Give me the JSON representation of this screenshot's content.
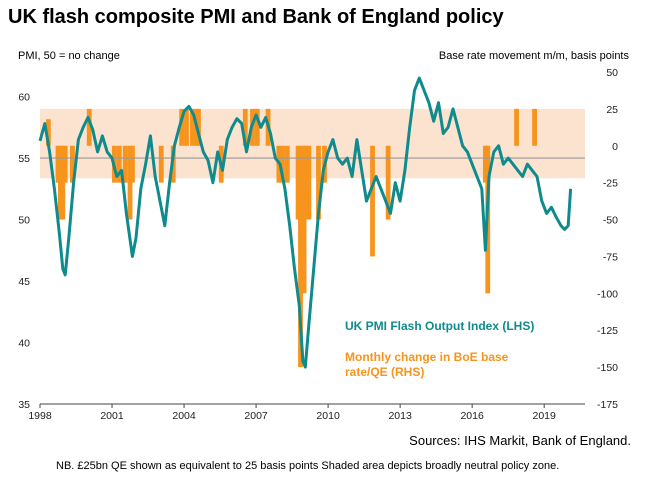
{
  "title": "UK flash composite PMI and Bank of England policy",
  "left_axis_caption": "PMI, 50 = no change",
  "right_axis_caption": "Base rate movement m/m, basis points",
  "source": "Sources: IHS Markit, Bank of England.",
  "note": "NB. £25bn QE shown as equivalent to 25 basis points Shaded area depicts broadly neutral policy zone.",
  "colors": {
    "pmi_line": "#0f8b8d",
    "boe_bars": "#f7941d",
    "neutral_zone": "#fbe3cf",
    "reference_line": "#999999",
    "legend_pmi": "#0f8b8d",
    "legend_boe": "#f7941d"
  },
  "chart_data": {
    "type": "line",
    "x_unit": "year (decimal)",
    "xlim": [
      1998,
      2020.7
    ],
    "x_ticks": [
      1998,
      2001,
      2004,
      2007,
      2010,
      2013,
      2016,
      2019
    ],
    "x_tick_labels": [
      "1998",
      "2001",
      "2004",
      "2007",
      "2010",
      "2013",
      "2016",
      "2019"
    ],
    "y_left": {
      "ylim": [
        35,
        62
      ],
      "ticks": [
        35,
        40,
        45,
        50,
        55,
        60
      ],
      "tick_labels": [
        "35",
        "40",
        "45",
        "50",
        "55",
        "60"
      ]
    },
    "y_right": {
      "ylim": [
        -175,
        50
      ],
      "ticks": [
        -175,
        -150,
        -125,
        -100,
        -75,
        -50,
        -25,
        0,
        25,
        50
      ],
      "tick_labels": [
        "-175",
        "-150",
        "-125",
        "-100",
        "-75",
        "-50",
        "-25",
        "0",
        "25",
        "50"
      ]
    },
    "neutral_zone_rhs": [
      -22,
      25
    ],
    "reference_line_lhs": 55,
    "series": [
      {
        "name": "UK PMI Flash Output Index (LHS)",
        "axis": "left",
        "kind": "line",
        "points": [
          [
            1998.0,
            56.4
          ],
          [
            1998.2,
            57.8
          ],
          [
            1998.4,
            55.5
          ],
          [
            1998.6,
            52.5
          ],
          [
            1998.8,
            49.0
          ],
          [
            1998.95,
            46.0
          ],
          [
            1999.05,
            45.5
          ],
          [
            1999.2,
            48.5
          ],
          [
            1999.4,
            53.0
          ],
          [
            1999.6,
            56.5
          ],
          [
            1999.8,
            57.5
          ],
          [
            2000.0,
            58.3
          ],
          [
            2000.2,
            57.3
          ],
          [
            2000.4,
            55.5
          ],
          [
            2000.6,
            56.8
          ],
          [
            2000.8,
            55.5
          ],
          [
            2001.0,
            55.0
          ],
          [
            2001.2,
            53.5
          ],
          [
            2001.4,
            54.0
          ],
          [
            2001.6,
            50.5
          ],
          [
            2001.85,
            47.0
          ],
          [
            2002.0,
            48.5
          ],
          [
            2002.2,
            52.5
          ],
          [
            2002.4,
            54.5
          ],
          [
            2002.6,
            56.8
          ],
          [
            2002.8,
            53.5
          ],
          [
            2003.0,
            51.5
          ],
          [
            2003.2,
            49.5
          ],
          [
            2003.4,
            53.0
          ],
          [
            2003.6,
            56.0
          ],
          [
            2003.8,
            57.5
          ],
          [
            2004.0,
            58.8
          ],
          [
            2004.2,
            59.2
          ],
          [
            2004.4,
            58.5
          ],
          [
            2004.6,
            57.0
          ],
          [
            2004.8,
            55.5
          ],
          [
            2005.0,
            54.8
          ],
          [
            2005.2,
            53.0
          ],
          [
            2005.4,
            55.5
          ],
          [
            2005.6,
            54.0
          ],
          [
            2005.8,
            56.5
          ],
          [
            2006.0,
            57.5
          ],
          [
            2006.2,
            58.2
          ],
          [
            2006.4,
            57.8
          ],
          [
            2006.6,
            55.5
          ],
          [
            2006.8,
            57.5
          ],
          [
            2007.0,
            58.5
          ],
          [
            2007.2,
            57.5
          ],
          [
            2007.4,
            58.3
          ],
          [
            2007.6,
            57.0
          ],
          [
            2007.8,
            55.0
          ],
          [
            2008.0,
            54.5
          ],
          [
            2008.2,
            52.5
          ],
          [
            2008.4,
            49.5
          ],
          [
            2008.6,
            46.0
          ],
          [
            2008.8,
            43.0
          ],
          [
            2008.95,
            38.5
          ],
          [
            2009.05,
            38.0
          ],
          [
            2009.2,
            41.5
          ],
          [
            2009.4,
            46.0
          ],
          [
            2009.6,
            50.5
          ],
          [
            2009.8,
            54.0
          ],
          [
            2010.0,
            55.5
          ],
          [
            2010.2,
            56.5
          ],
          [
            2010.4,
            55.0
          ],
          [
            2010.6,
            54.5
          ],
          [
            2010.8,
            55.0
          ],
          [
            2011.0,
            53.5
          ],
          [
            2011.2,
            56.5
          ],
          [
            2011.4,
            54.0
          ],
          [
            2011.6,
            51.5
          ],
          [
            2011.8,
            52.5
          ],
          [
            2012.0,
            53.5
          ],
          [
            2012.2,
            52.5
          ],
          [
            2012.4,
            51.5
          ],
          [
            2012.6,
            50.5
          ],
          [
            2012.8,
            53.0
          ],
          [
            2013.0,
            51.5
          ],
          [
            2013.2,
            54.0
          ],
          [
            2013.4,
            57.5
          ],
          [
            2013.6,
            60.5
          ],
          [
            2013.8,
            61.5
          ],
          [
            2014.0,
            60.5
          ],
          [
            2014.2,
            59.5
          ],
          [
            2014.4,
            58.0
          ],
          [
            2014.6,
            59.5
          ],
          [
            2014.8,
            57.0
          ],
          [
            2015.0,
            57.5
          ],
          [
            2015.2,
            59.0
          ],
          [
            2015.4,
            57.5
          ],
          [
            2015.6,
            56.0
          ],
          [
            2015.8,
            55.5
          ],
          [
            2016.0,
            54.5
          ],
          [
            2016.2,
            53.5
          ],
          [
            2016.4,
            52.5
          ],
          [
            2016.55,
            47.5
          ],
          [
            2016.7,
            53.5
          ],
          [
            2016.9,
            55.5
          ],
          [
            2017.1,
            56.0
          ],
          [
            2017.3,
            54.5
          ],
          [
            2017.5,
            55.0
          ],
          [
            2017.7,
            54.5
          ],
          [
            2017.9,
            54.0
          ],
          [
            2018.1,
            53.5
          ],
          [
            2018.3,
            54.5
          ],
          [
            2018.5,
            54.0
          ],
          [
            2018.7,
            53.5
          ],
          [
            2018.9,
            51.5
          ],
          [
            2019.1,
            50.5
          ],
          [
            2019.3,
            51.0
          ],
          [
            2019.5,
            50.2
          ],
          [
            2019.7,
            49.5
          ],
          [
            2019.85,
            49.2
          ],
          [
            2020.0,
            49.5
          ],
          [
            2020.1,
            52.5
          ]
        ]
      },
      {
        "name": "Monthly change in BoE base rate/QE (RHS)",
        "axis": "right",
        "kind": "bar",
        "points": [
          [
            1998.35,
            18
          ],
          [
            1998.75,
            -25
          ],
          [
            1998.85,
            -50
          ],
          [
            1998.95,
            -50
          ],
          [
            1999.05,
            -25
          ],
          [
            1999.35,
            -25
          ],
          [
            2000.05,
            25
          ],
          [
            2001.1,
            -25
          ],
          [
            2001.3,
            -25
          ],
          [
            2001.55,
            -25
          ],
          [
            2001.75,
            -50
          ],
          [
            2001.85,
            -25
          ],
          [
            2003.05,
            -25
          ],
          [
            2003.55,
            -25
          ],
          [
            2003.9,
            25
          ],
          [
            2004.1,
            25
          ],
          [
            2004.35,
            25
          ],
          [
            2004.5,
            25
          ],
          [
            2004.6,
            25
          ],
          [
            2005.55,
            -25
          ],
          [
            2006.55,
            25
          ],
          [
            2006.85,
            25
          ],
          [
            2007.05,
            25
          ],
          [
            2007.5,
            25
          ],
          [
            2007.95,
            -25
          ],
          [
            2008.1,
            -25
          ],
          [
            2008.3,
            -25
          ],
          [
            2008.75,
            -50
          ],
          [
            2008.85,
            -150
          ],
          [
            2009.0,
            -100
          ],
          [
            2009.1,
            -50
          ],
          [
            2009.2,
            -50
          ],
          [
            2009.6,
            -50
          ],
          [
            2009.85,
            -25
          ],
          [
            2011.85,
            -75
          ],
          [
            2012.5,
            -50
          ],
          [
            2016.55,
            -25
          ],
          [
            2016.65,
            -100
          ],
          [
            2017.85,
            25
          ],
          [
            2018.6,
            25
          ]
        ]
      }
    ],
    "legend": [
      {
        "name": "UK PMI Flash Output Index (LHS)",
        "placement": "lower-center"
      },
      {
        "name": "Monthly change in BoE base rate/QE (RHS)",
        "placement": "lower-center"
      }
    ]
  }
}
